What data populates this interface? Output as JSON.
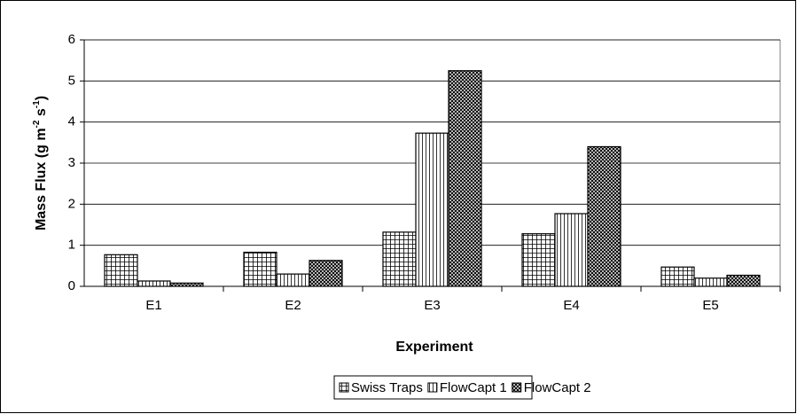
{
  "chart_data": {
    "type": "bar",
    "ylabel_parts": [
      "Mass Flux (g m",
      "-2",
      " s",
      "-1",
      ")"
    ],
    "xlabel": "Experiment",
    "categories": [
      "E1",
      "E2",
      "E3",
      "E4",
      "E5"
    ],
    "series": [
      {
        "name": "Swiss Traps",
        "color": "#000000",
        "pattern": "grid",
        "values": [
          0.77,
          0.83,
          1.32,
          1.28,
          0.47
        ]
      },
      {
        "name": "FlowCapt 1",
        "color": "#000000",
        "pattern": "vertical",
        "values": [
          0.13,
          0.3,
          3.73,
          1.77,
          0.2
        ]
      },
      {
        "name": "FlowCapt 2",
        "color": "#000000",
        "pattern": "crosshatch",
        "values": [
          0.08,
          0.63,
          5.25,
          3.4,
          0.27
        ]
      }
    ],
    "ylim": [
      0,
      6
    ],
    "yticks": [
      0,
      1,
      2,
      3,
      4,
      5,
      6
    ],
    "grid": true,
    "legend": "bottom"
  }
}
